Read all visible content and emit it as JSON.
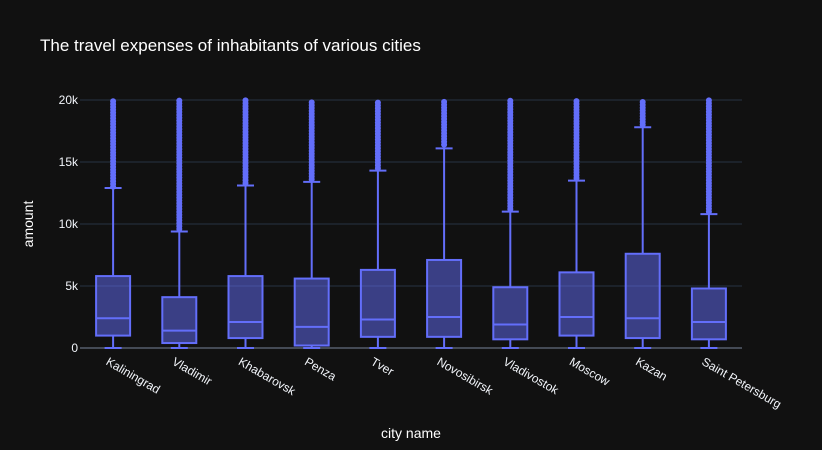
{
  "chart_data": {
    "type": "box",
    "title": "The travel expenses of inhabitants of various cities",
    "xlabel": "city name",
    "ylabel": "amount",
    "ylim": [
      0,
      20000
    ],
    "yticks": [
      0,
      5000,
      10000,
      15000,
      20000
    ],
    "ytick_labels": [
      "0",
      "5k",
      "10k",
      "15k",
      "20k"
    ],
    "grid": true,
    "color": "#636efa",
    "background": "#111111",
    "categories": [
      "Kaliningrad",
      "Vladimir",
      "Khabarovsk",
      "Penza",
      "Tver",
      "Novosibirsk",
      "Vladivostok",
      "Moscow",
      "Kazan",
      "Saint Petersburg"
    ],
    "boxes": [
      {
        "name": "Kaliningrad",
        "min": 0,
        "q1": 1000,
        "median": 2400,
        "q3": 5800,
        "max": 12900,
        "outliers_from": 13000,
        "outliers_to": 20000
      },
      {
        "name": "Vladimir",
        "min": 0,
        "q1": 400,
        "median": 1400,
        "q3": 4100,
        "max": 9400,
        "outliers_from": 9600,
        "outliers_to": 20000
      },
      {
        "name": "Khabarovsk",
        "min": 0,
        "q1": 800,
        "median": 2100,
        "q3": 5800,
        "max": 13100,
        "outliers_from": 13300,
        "outliers_to": 20000
      },
      {
        "name": "Penza",
        "min": 0,
        "q1": 200,
        "median": 1700,
        "q3": 5600,
        "max": 13400,
        "outliers_from": 13600,
        "outliers_to": 20000
      },
      {
        "name": "Tver",
        "min": 0,
        "q1": 900,
        "median": 2300,
        "q3": 6300,
        "max": 14300,
        "outliers_from": 14500,
        "outliers_to": 20000
      },
      {
        "name": "Novosibirsk",
        "min": 0,
        "q1": 900,
        "median": 2500,
        "q3": 7100,
        "max": 16100,
        "outliers_from": 16400,
        "outliers_to": 20000
      },
      {
        "name": "Vladivostok",
        "min": 0,
        "q1": 700,
        "median": 1900,
        "q3": 4900,
        "max": 11000,
        "outliers_from": 11200,
        "outliers_to": 20000
      },
      {
        "name": "Moscow",
        "min": 0,
        "q1": 1000,
        "median": 2500,
        "q3": 6100,
        "max": 13500,
        "outliers_from": 13700,
        "outliers_to": 20000
      },
      {
        "name": "Kazan",
        "min": 0,
        "q1": 800,
        "median": 2400,
        "q3": 7600,
        "max": 17800,
        "outliers_from": 18000,
        "outliers_to": 20000
      },
      {
        "name": "Saint Petersburg",
        "min": 0,
        "q1": 700,
        "median": 2100,
        "q3": 4800,
        "max": 10800,
        "outliers_from": 11000,
        "outliers_to": 20000
      }
    ]
  }
}
